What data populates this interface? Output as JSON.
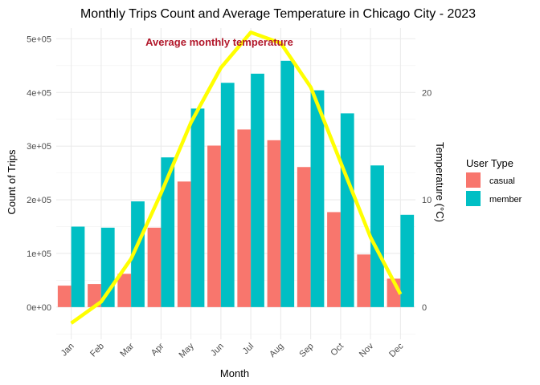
{
  "chart_data": {
    "type": "bar",
    "title": "Monthly Trips Count and Average Temperature in Chicago City - 2023",
    "xlabel": "Month",
    "ylabel": "Count of Trips",
    "y2label": "Temperature (°C)",
    "categories": [
      "Jan",
      "Feb",
      "Mar",
      "Apr",
      "May",
      "Jun",
      "Jul",
      "Aug",
      "Sep",
      "Oct",
      "Nov",
      "Dec"
    ],
    "series": [
      {
        "name": "casual",
        "color": "#F8766D",
        "values": [
          40000,
          43000,
          62000,
          148000,
          234000,
          301000,
          331000,
          311000,
          261000,
          177000,
          98000,
          53000
        ]
      },
      {
        "name": "member",
        "color": "#00BFC4",
        "values": [
          150000,
          148000,
          197000,
          279000,
          370000,
          418000,
          435000,
          459000,
          404000,
          361000,
          264000,
          172000
        ]
      }
    ],
    "line": {
      "name": "Average monthly temperature",
      "color": "#FFFF00",
      "values": [
        -1.5,
        0.5,
        4.5,
        10.6,
        17.2,
        22.3,
        25.6,
        24.6,
        20.5,
        13.5,
        6.5,
        1.2
      ]
    },
    "ylim": [
      -60000,
      520000
    ],
    "y_ticks": [
      0,
      100000,
      200000,
      300000,
      400000,
      500000
    ],
    "y_tick_labels": [
      "0e+00",
      "1e+05",
      "2e+05",
      "3e+05",
      "4e+05",
      "5e+05"
    ],
    "y2_ticks": [
      0,
      10,
      20
    ],
    "y2_tick_labels": [
      "0",
      "10",
      "20"
    ],
    "legend_title": "User Type",
    "legend_position": "right",
    "annotation": "Average monthly temperature",
    "grid": true
  }
}
